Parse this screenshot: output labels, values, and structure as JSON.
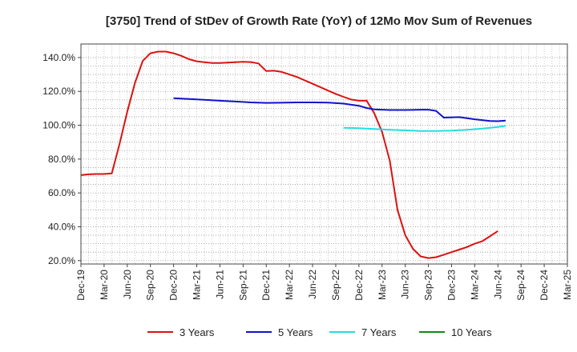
{
  "chart_data": {
    "type": "line",
    "title": "[3750]  Trend of StDev of Growth Rate (YoY) of 12Mo Mov Sum of Revenues",
    "xlabel": "",
    "ylabel": "",
    "ylim": [
      18,
      148
    ],
    "yticks": [
      20,
      40,
      60,
      80,
      100,
      120,
      140
    ],
    "ytick_labels": [
      "20.0%",
      "40.0%",
      "60.0%",
      "80.0%",
      "100.0%",
      "120.0%",
      "140.0%"
    ],
    "xtick_labels": [
      "Dec-19",
      "Mar-20",
      "Jun-20",
      "Sep-20",
      "Dec-20",
      "Mar-21",
      "Jun-21",
      "Sep-21",
      "Dec-21",
      "Mar-22",
      "Jun-22",
      "Sep-22",
      "Dec-22",
      "Mar-23",
      "Jun-23",
      "Sep-23",
      "Dec-23",
      "Mar-24",
      "Jun-24",
      "Sep-24",
      "Dec-24",
      "Mar-25"
    ],
    "x_start_label": "Dec-19",
    "months_span": 63,
    "grid": true,
    "legend_position": "bottom",
    "series": [
      {
        "name": "3 Years",
        "color": "#dd1111",
        "points": [
          [
            0,
            70.5
          ],
          [
            1,
            71
          ],
          [
            2,
            71.2
          ],
          [
            3,
            71.2
          ],
          [
            4,
            71.5
          ],
          [
            5,
            89
          ],
          [
            6,
            108
          ],
          [
            7,
            125
          ],
          [
            8,
            138
          ],
          [
            9,
            142.5
          ],
          [
            10,
            143.5
          ],
          [
            11,
            143.5
          ],
          [
            12,
            142.5
          ],
          [
            13,
            141
          ],
          [
            14,
            139
          ],
          [
            15,
            137.8
          ],
          [
            16,
            137.2
          ],
          [
            17,
            136.8
          ],
          [
            18,
            136.8
          ],
          [
            19,
            137
          ],
          [
            20,
            137.2
          ],
          [
            21,
            137.5
          ],
          [
            22,
            137.3
          ],
          [
            23,
            136.5
          ],
          [
            24,
            132
          ],
          [
            25,
            132.2
          ],
          [
            26,
            131.5
          ],
          [
            27,
            130
          ],
          [
            28,
            128.5
          ],
          [
            29,
            126.5
          ],
          [
            30,
            124.5
          ],
          [
            31,
            122.5
          ],
          [
            32,
            120.5
          ],
          [
            33,
            118.5
          ],
          [
            34,
            116.8
          ],
          [
            35,
            115.2
          ],
          [
            36,
            114.5
          ],
          [
            37,
            114.5
          ],
          [
            38,
            107
          ],
          [
            39,
            96
          ],
          [
            40,
            79
          ],
          [
            41,
            50
          ],
          [
            42,
            35
          ],
          [
            43,
            27
          ],
          [
            44,
            22.5
          ],
          [
            45,
            21.5
          ],
          [
            46,
            22
          ],
          [
            47,
            23.5
          ],
          [
            48,
            25
          ],
          [
            49,
            26.5
          ],
          [
            50,
            28
          ],
          [
            51,
            30
          ],
          [
            52,
            31.5
          ],
          [
            53,
            34.5
          ],
          [
            54,
            37.5
          ]
        ]
      },
      {
        "name": "5 Years",
        "color": "#1111cc",
        "points": [
          [
            12,
            116
          ],
          [
            14,
            115.5
          ],
          [
            16,
            115
          ],
          [
            18,
            114.5
          ],
          [
            20,
            114
          ],
          [
            22,
            113.5
          ],
          [
            24,
            113.2
          ],
          [
            26,
            113.3
          ],
          [
            28,
            113.5
          ],
          [
            30,
            113.5
          ],
          [
            32,
            113.4
          ],
          [
            34,
            112.8
          ],
          [
            36,
            111.5
          ],
          [
            37,
            110.2
          ],
          [
            38,
            109.4
          ],
          [
            40,
            109
          ],
          [
            42,
            109
          ],
          [
            44,
            109.2
          ],
          [
            45,
            109.2
          ],
          [
            46,
            108.5
          ],
          [
            47,
            104.5
          ],
          [
            49,
            104.8
          ],
          [
            51,
            103.5
          ],
          [
            53,
            102.5
          ],
          [
            54,
            102.4
          ],
          [
            55,
            102.7
          ]
        ]
      },
      {
        "name": "7 Years",
        "color": "#22dddd",
        "points": [
          [
            34,
            98.5
          ],
          [
            36,
            98.2
          ],
          [
            38,
            97.8
          ],
          [
            40,
            97.3
          ],
          [
            42,
            97
          ],
          [
            44,
            96.6
          ],
          [
            46,
            96.6
          ],
          [
            48,
            96.8
          ],
          [
            50,
            97.3
          ],
          [
            52,
            98
          ],
          [
            54,
            99
          ],
          [
            55,
            99.6
          ]
        ]
      },
      {
        "name": "10 Years",
        "color": "#118811",
        "points": []
      }
    ]
  }
}
